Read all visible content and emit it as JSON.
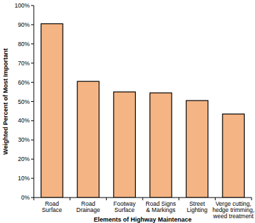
{
  "chart_data": {
    "type": "bar",
    "categories": [
      "Road Surface",
      "Road Drainage",
      "Footway Surface",
      "Road Signs & Markings",
      "Street Lighting",
      "Verge cutting, hedge trimming, weed treatment"
    ],
    "values": [
      90.5,
      60.5,
      55,
      54.5,
      50.5,
      43.5
    ],
    "color": "#f5b483",
    "x_label": "Elements of Highway Maintenace",
    "y_label": "Weighted Percent of Most Important",
    "ylim": [
      0,
      100
    ],
    "yticks": [
      {
        "value": 0,
        "label": "0%"
      },
      {
        "value": 10,
        "label": "10%"
      },
      {
        "value": 20,
        "label": "20%"
      },
      {
        "value": 30,
        "label": "30%"
      },
      {
        "value": 40,
        "label": "40%"
      },
      {
        "value": 50,
        "label": "50%"
      },
      {
        "value": 60,
        "label": "60%"
      },
      {
        "value": 70,
        "label": "70%"
      },
      {
        "value": 80,
        "label": "80%"
      },
      {
        "value": 90,
        "label": "90%"
      },
      {
        "value": 100,
        "label": "100%"
      }
    ],
    "grid": false
  }
}
